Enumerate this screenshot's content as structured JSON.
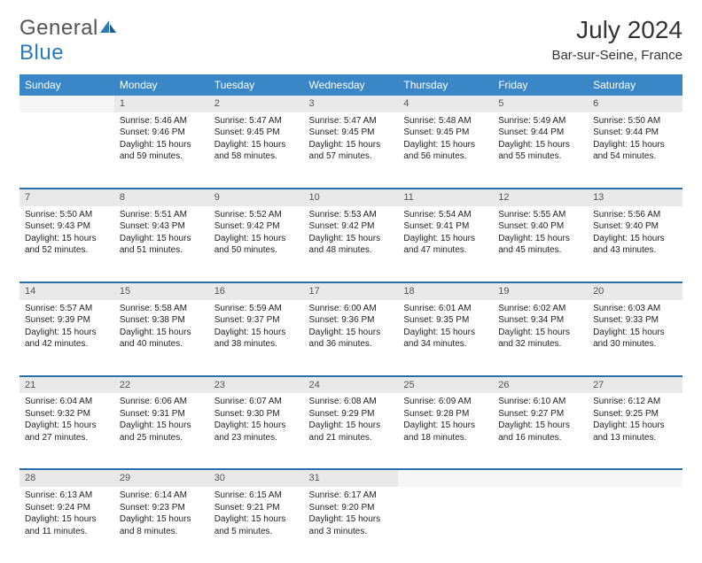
{
  "brand": {
    "part1": "General",
    "part2": "Blue"
  },
  "title": "July 2024",
  "location": "Bar-sur-Seine, France",
  "colors": {
    "header_bg": "#3a87c8",
    "header_text": "#ffffff",
    "daynum_bg": "#e9e9e9",
    "row_divider": "#2a6fa5",
    "body_text": "#222222",
    "page_bg": "#ffffff",
    "logo_gray": "#555555",
    "logo_blue": "#2a7ab8"
  },
  "fonts": {
    "title_size": 28,
    "location_size": 15,
    "header_size": 12,
    "daynum_size": 11,
    "cell_size": 10
  },
  "columns": [
    "Sunday",
    "Monday",
    "Tuesday",
    "Wednesday",
    "Thursday",
    "Friday",
    "Saturday"
  ],
  "weeks": [
    [
      {
        "day": "",
        "lines": []
      },
      {
        "day": "1",
        "lines": [
          "Sunrise: 5:46 AM",
          "Sunset: 9:46 PM",
          "Daylight: 15 hours",
          "and 59 minutes."
        ]
      },
      {
        "day": "2",
        "lines": [
          "Sunrise: 5:47 AM",
          "Sunset: 9:45 PM",
          "Daylight: 15 hours",
          "and 58 minutes."
        ]
      },
      {
        "day": "3",
        "lines": [
          "Sunrise: 5:47 AM",
          "Sunset: 9:45 PM",
          "Daylight: 15 hours",
          "and 57 minutes."
        ]
      },
      {
        "day": "4",
        "lines": [
          "Sunrise: 5:48 AM",
          "Sunset: 9:45 PM",
          "Daylight: 15 hours",
          "and 56 minutes."
        ]
      },
      {
        "day": "5",
        "lines": [
          "Sunrise: 5:49 AM",
          "Sunset: 9:44 PM",
          "Daylight: 15 hours",
          "and 55 minutes."
        ]
      },
      {
        "day": "6",
        "lines": [
          "Sunrise: 5:50 AM",
          "Sunset: 9:44 PM",
          "Daylight: 15 hours",
          "and 54 minutes."
        ]
      }
    ],
    [
      {
        "day": "7",
        "lines": [
          "Sunrise: 5:50 AM",
          "Sunset: 9:43 PM",
          "Daylight: 15 hours",
          "and 52 minutes."
        ]
      },
      {
        "day": "8",
        "lines": [
          "Sunrise: 5:51 AM",
          "Sunset: 9:43 PM",
          "Daylight: 15 hours",
          "and 51 minutes."
        ]
      },
      {
        "day": "9",
        "lines": [
          "Sunrise: 5:52 AM",
          "Sunset: 9:42 PM",
          "Daylight: 15 hours",
          "and 50 minutes."
        ]
      },
      {
        "day": "10",
        "lines": [
          "Sunrise: 5:53 AM",
          "Sunset: 9:42 PM",
          "Daylight: 15 hours",
          "and 48 minutes."
        ]
      },
      {
        "day": "11",
        "lines": [
          "Sunrise: 5:54 AM",
          "Sunset: 9:41 PM",
          "Daylight: 15 hours",
          "and 47 minutes."
        ]
      },
      {
        "day": "12",
        "lines": [
          "Sunrise: 5:55 AM",
          "Sunset: 9:40 PM",
          "Daylight: 15 hours",
          "and 45 minutes."
        ]
      },
      {
        "day": "13",
        "lines": [
          "Sunrise: 5:56 AM",
          "Sunset: 9:40 PM",
          "Daylight: 15 hours",
          "and 43 minutes."
        ]
      }
    ],
    [
      {
        "day": "14",
        "lines": [
          "Sunrise: 5:57 AM",
          "Sunset: 9:39 PM",
          "Daylight: 15 hours",
          "and 42 minutes."
        ]
      },
      {
        "day": "15",
        "lines": [
          "Sunrise: 5:58 AM",
          "Sunset: 9:38 PM",
          "Daylight: 15 hours",
          "and 40 minutes."
        ]
      },
      {
        "day": "16",
        "lines": [
          "Sunrise: 5:59 AM",
          "Sunset: 9:37 PM",
          "Daylight: 15 hours",
          "and 38 minutes."
        ]
      },
      {
        "day": "17",
        "lines": [
          "Sunrise: 6:00 AM",
          "Sunset: 9:36 PM",
          "Daylight: 15 hours",
          "and 36 minutes."
        ]
      },
      {
        "day": "18",
        "lines": [
          "Sunrise: 6:01 AM",
          "Sunset: 9:35 PM",
          "Daylight: 15 hours",
          "and 34 minutes."
        ]
      },
      {
        "day": "19",
        "lines": [
          "Sunrise: 6:02 AM",
          "Sunset: 9:34 PM",
          "Daylight: 15 hours",
          "and 32 minutes."
        ]
      },
      {
        "day": "20",
        "lines": [
          "Sunrise: 6:03 AM",
          "Sunset: 9:33 PM",
          "Daylight: 15 hours",
          "and 30 minutes."
        ]
      }
    ],
    [
      {
        "day": "21",
        "lines": [
          "Sunrise: 6:04 AM",
          "Sunset: 9:32 PM",
          "Daylight: 15 hours",
          "and 27 minutes."
        ]
      },
      {
        "day": "22",
        "lines": [
          "Sunrise: 6:06 AM",
          "Sunset: 9:31 PM",
          "Daylight: 15 hours",
          "and 25 minutes."
        ]
      },
      {
        "day": "23",
        "lines": [
          "Sunrise: 6:07 AM",
          "Sunset: 9:30 PM",
          "Daylight: 15 hours",
          "and 23 minutes."
        ]
      },
      {
        "day": "24",
        "lines": [
          "Sunrise: 6:08 AM",
          "Sunset: 9:29 PM",
          "Daylight: 15 hours",
          "and 21 minutes."
        ]
      },
      {
        "day": "25",
        "lines": [
          "Sunrise: 6:09 AM",
          "Sunset: 9:28 PM",
          "Daylight: 15 hours",
          "and 18 minutes."
        ]
      },
      {
        "day": "26",
        "lines": [
          "Sunrise: 6:10 AM",
          "Sunset: 9:27 PM",
          "Daylight: 15 hours",
          "and 16 minutes."
        ]
      },
      {
        "day": "27",
        "lines": [
          "Sunrise: 6:12 AM",
          "Sunset: 9:25 PM",
          "Daylight: 15 hours",
          "and 13 minutes."
        ]
      }
    ],
    [
      {
        "day": "28",
        "lines": [
          "Sunrise: 6:13 AM",
          "Sunset: 9:24 PM",
          "Daylight: 15 hours",
          "and 11 minutes."
        ]
      },
      {
        "day": "29",
        "lines": [
          "Sunrise: 6:14 AM",
          "Sunset: 9:23 PM",
          "Daylight: 15 hours",
          "and 8 minutes."
        ]
      },
      {
        "day": "30",
        "lines": [
          "Sunrise: 6:15 AM",
          "Sunset: 9:21 PM",
          "Daylight: 15 hours",
          "and 5 minutes."
        ]
      },
      {
        "day": "31",
        "lines": [
          "Sunrise: 6:17 AM",
          "Sunset: 9:20 PM",
          "Daylight: 15 hours",
          "and 3 minutes."
        ]
      },
      {
        "day": "",
        "lines": []
      },
      {
        "day": "",
        "lines": []
      },
      {
        "day": "",
        "lines": []
      }
    ]
  ]
}
